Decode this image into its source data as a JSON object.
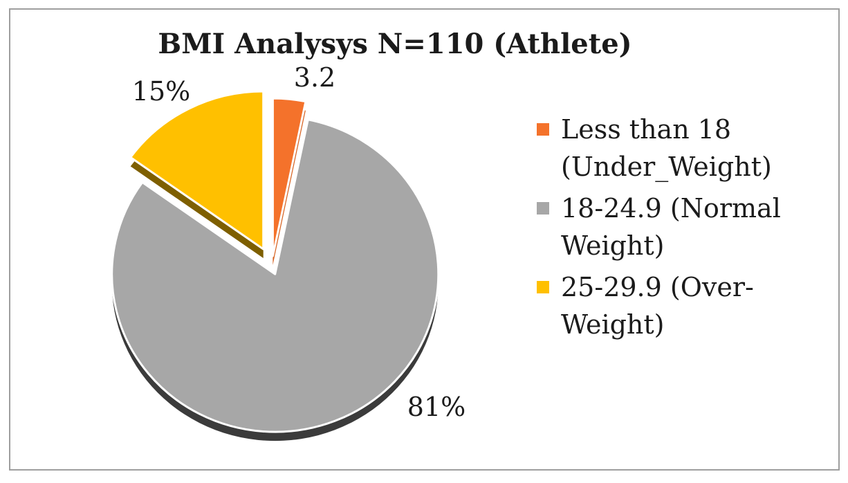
{
  "figure": {
    "background_color": "#FFFFFF",
    "border_color": "#9E9E9E"
  },
  "chart_data": {
    "type": "pie",
    "title": "BMI Analysys N=110 (Athlete)",
    "effect": "3d-exploded",
    "legend_position": "right",
    "slices": [
      {
        "name": "underweight",
        "label": "Less than 18 (Under_Weight)",
        "value": 3.2,
        "data_label": "3.2",
        "color": "#F4722B",
        "side_color": "#D6601E"
      },
      {
        "name": "normal-weight",
        "label": "18-24.9 (Normal Weight)",
        "value": 81,
        "data_label": "81%",
        "color": "#A7A7A7",
        "side_color": "#3B3B3B"
      },
      {
        "name": "overweight",
        "label": "25-29.9 (Over-Weight)",
        "value": 15,
        "data_label": "15%",
        "color": "#FFC000",
        "side_color": "#7E5F00"
      }
    ],
    "text_color": "#1B1B1B"
  }
}
